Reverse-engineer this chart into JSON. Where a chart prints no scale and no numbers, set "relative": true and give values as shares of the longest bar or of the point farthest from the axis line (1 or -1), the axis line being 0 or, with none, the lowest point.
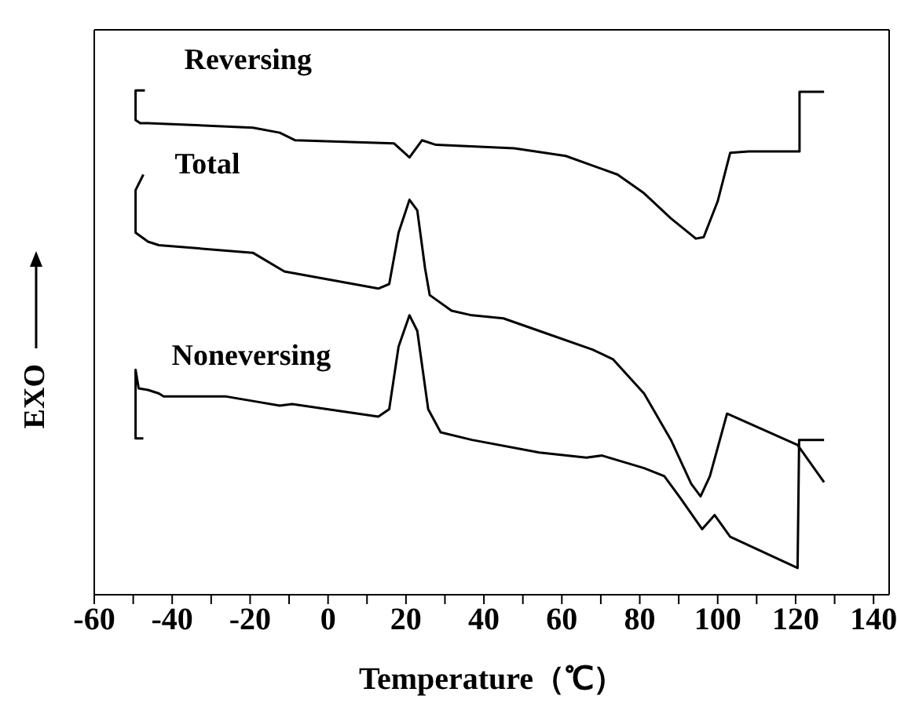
{
  "chart_data": {
    "type": "line",
    "relative": true,
    "xlabel": "Temperature（℃）",
    "ylabel": "EXO",
    "xlim": [
      -60,
      144
    ],
    "xticks": [
      -60,
      {
        "value": -50,
        "label": null
      },
      -40,
      {
        "value": -30,
        "label": null
      },
      -20,
      {
        "value": -10,
        "label": null
      },
      0,
      {
        "value": 10,
        "label": null
      },
      20,
      {
        "value": 30,
        "label": null
      },
      40,
      {
        "value": 50,
        "label": null
      },
      60,
      {
        "value": 70,
        "label": null
      },
      80,
      {
        "value": 90,
        "label": null
      },
      100,
      {
        "value": 110,
        "label": null
      },
      120,
      {
        "value": 130,
        "label": null
      },
      140
    ],
    "marker": "none",
    "line_style": "solid",
    "series": [
      {
        "name": "Reversing",
        "color": "#000000",
        "x": [
          -47,
          -49.4,
          -49.4,
          -48.2,
          -46.2,
          -19.3,
          -12.4,
          -8.4,
          16.9,
          20.9,
          24.1,
          27.7,
          47.8,
          61,
          74.3,
          81.1,
          88,
          94.4,
          96.4,
          100,
          103.2,
          108,
          121,
          121,
          127.3
        ],
        "values": [
          1.0,
          1.0,
          0.941,
          0.935,
          0.935,
          0.926,
          0.916,
          0.901,
          0.895,
          0.867,
          0.901,
          0.892,
          0.885,
          0.87,
          0.833,
          0.796,
          0.746,
          0.706,
          0.709,
          0.78,
          0.876,
          0.879,
          0.879,
          0.997,
          0.997
        ]
      },
      {
        "name": "Total",
        "color": "#000000",
        "x": [
          -47.4,
          -49.4,
          -49.4,
          -46.2,
          -43.4,
          -19.3,
          -11.2,
          12.9,
          15.7,
          18.1,
          20.9,
          22.9,
          24.9,
          26.1,
          31.7,
          36.9,
          45,
          54.2,
          67.9,
          73.1,
          81.1,
          88,
          93.2,
          95.6,
          98,
          102.4,
          120.5,
          127.3
        ],
        "values": [
          0.833,
          0.802,
          0.718,
          0.7,
          0.693,
          0.678,
          0.641,
          0.607,
          0.616,
          0.718,
          0.783,
          0.762,
          0.647,
          0.594,
          0.563,
          0.554,
          0.548,
          0.523,
          0.486,
          0.467,
          0.399,
          0.307,
          0.22,
          0.195,
          0.235,
          0.359,
          0.297,
          0.223
        ]
      },
      {
        "name": "Noneversing",
        "color": "#000000",
        "x": [
          -47.4,
          -49.4,
          -49.4,
          -48.6,
          -46.2,
          -43.4,
          -42.2,
          -26.1,
          -19.3,
          -12.4,
          -9.2,
          12.9,
          15.7,
          18.1,
          20.9,
          22.9,
          25.7,
          28.9,
          36.9,
          54.2,
          66.3,
          70.3,
          81.1,
          86.3,
          90.4,
          96,
          99.2,
          103.2,
          120.5,
          120.9,
          127.3
        ],
        "values": [
          0.31,
          0.31,
          0.446,
          0.409,
          0.406,
          0.399,
          0.393,
          0.393,
          0.384,
          0.375,
          0.378,
          0.353,
          0.368,
          0.492,
          0.554,
          0.523,
          0.368,
          0.322,
          0.307,
          0.282,
          0.272,
          0.276,
          0.251,
          0.235,
          0.192,
          0.13,
          0.158,
          0.115,
          0.053,
          0.307,
          0.307
        ]
      }
    ]
  }
}
